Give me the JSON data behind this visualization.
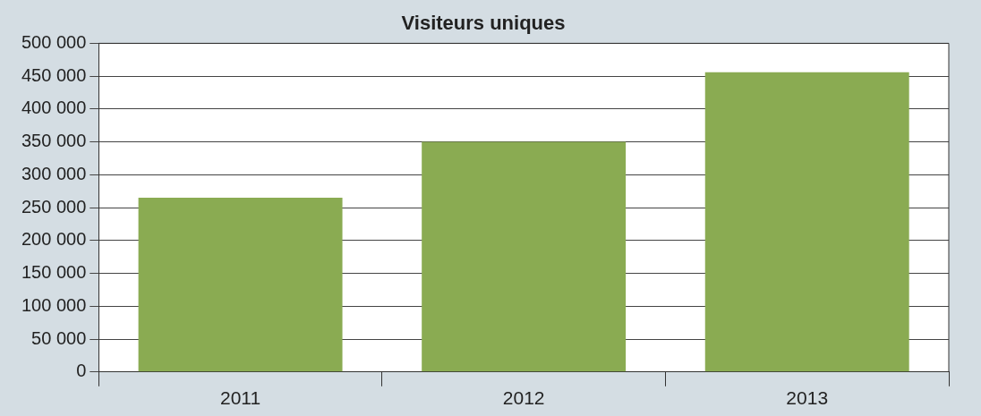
{
  "chart_data": {
    "type": "bar",
    "title": "Visiteurs uniques",
    "categories": [
      "2011",
      "2012",
      "2013"
    ],
    "values": [
      265000,
      350000,
      456000
    ],
    "color": "#8aab52",
    "ylim": [
      0,
      500000
    ],
    "yticks": [
      {
        "value": 0,
        "label": "0"
      },
      {
        "value": 50000,
        "label": "50 000"
      },
      {
        "value": 100000,
        "label": "100 000"
      },
      {
        "value": 150000,
        "label": "150 000"
      },
      {
        "value": 200000,
        "label": "200 000"
      },
      {
        "value": 250000,
        "label": "250 000"
      },
      {
        "value": 300000,
        "label": "300 000"
      },
      {
        "value": 350000,
        "label": "350 000"
      },
      {
        "value": 400000,
        "label": "400 000"
      },
      {
        "value": 450000,
        "label": "450 000"
      },
      {
        "value": 500000,
        "label": "500 000"
      }
    ],
    "grid": "y",
    "legend": false
  }
}
